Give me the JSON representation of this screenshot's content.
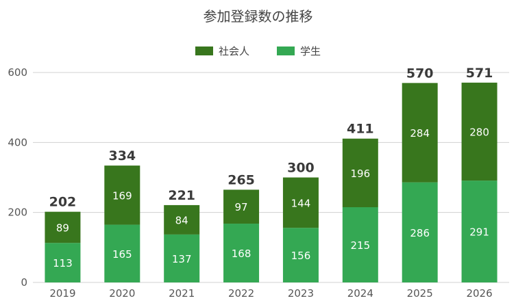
{
  "chart_data": {
    "type": "bar",
    "stacked": true,
    "title": "参加登録数の推移",
    "categories": [
      "2019",
      "2020",
      "2021",
      "2022",
      "2023",
      "2024",
      "2025",
      "2026"
    ],
    "series": [
      {
        "name": "学生",
        "color": "#34a853",
        "values": [
          113,
          165,
          137,
          168,
          156,
          215,
          286,
          291
        ]
      },
      {
        "name": "社会人",
        "color": "#38761d",
        "values": [
          89,
          169,
          84,
          97,
          144,
          196,
          284,
          280
        ]
      }
    ],
    "totals": [
      202,
      334,
      221,
      265,
      300,
      411,
      570,
      571
    ],
    "ylim": [
      0,
      600
    ],
    "yticks": [
      0,
      200,
      400,
      600
    ],
    "grid": true,
    "legend_position": "top"
  }
}
